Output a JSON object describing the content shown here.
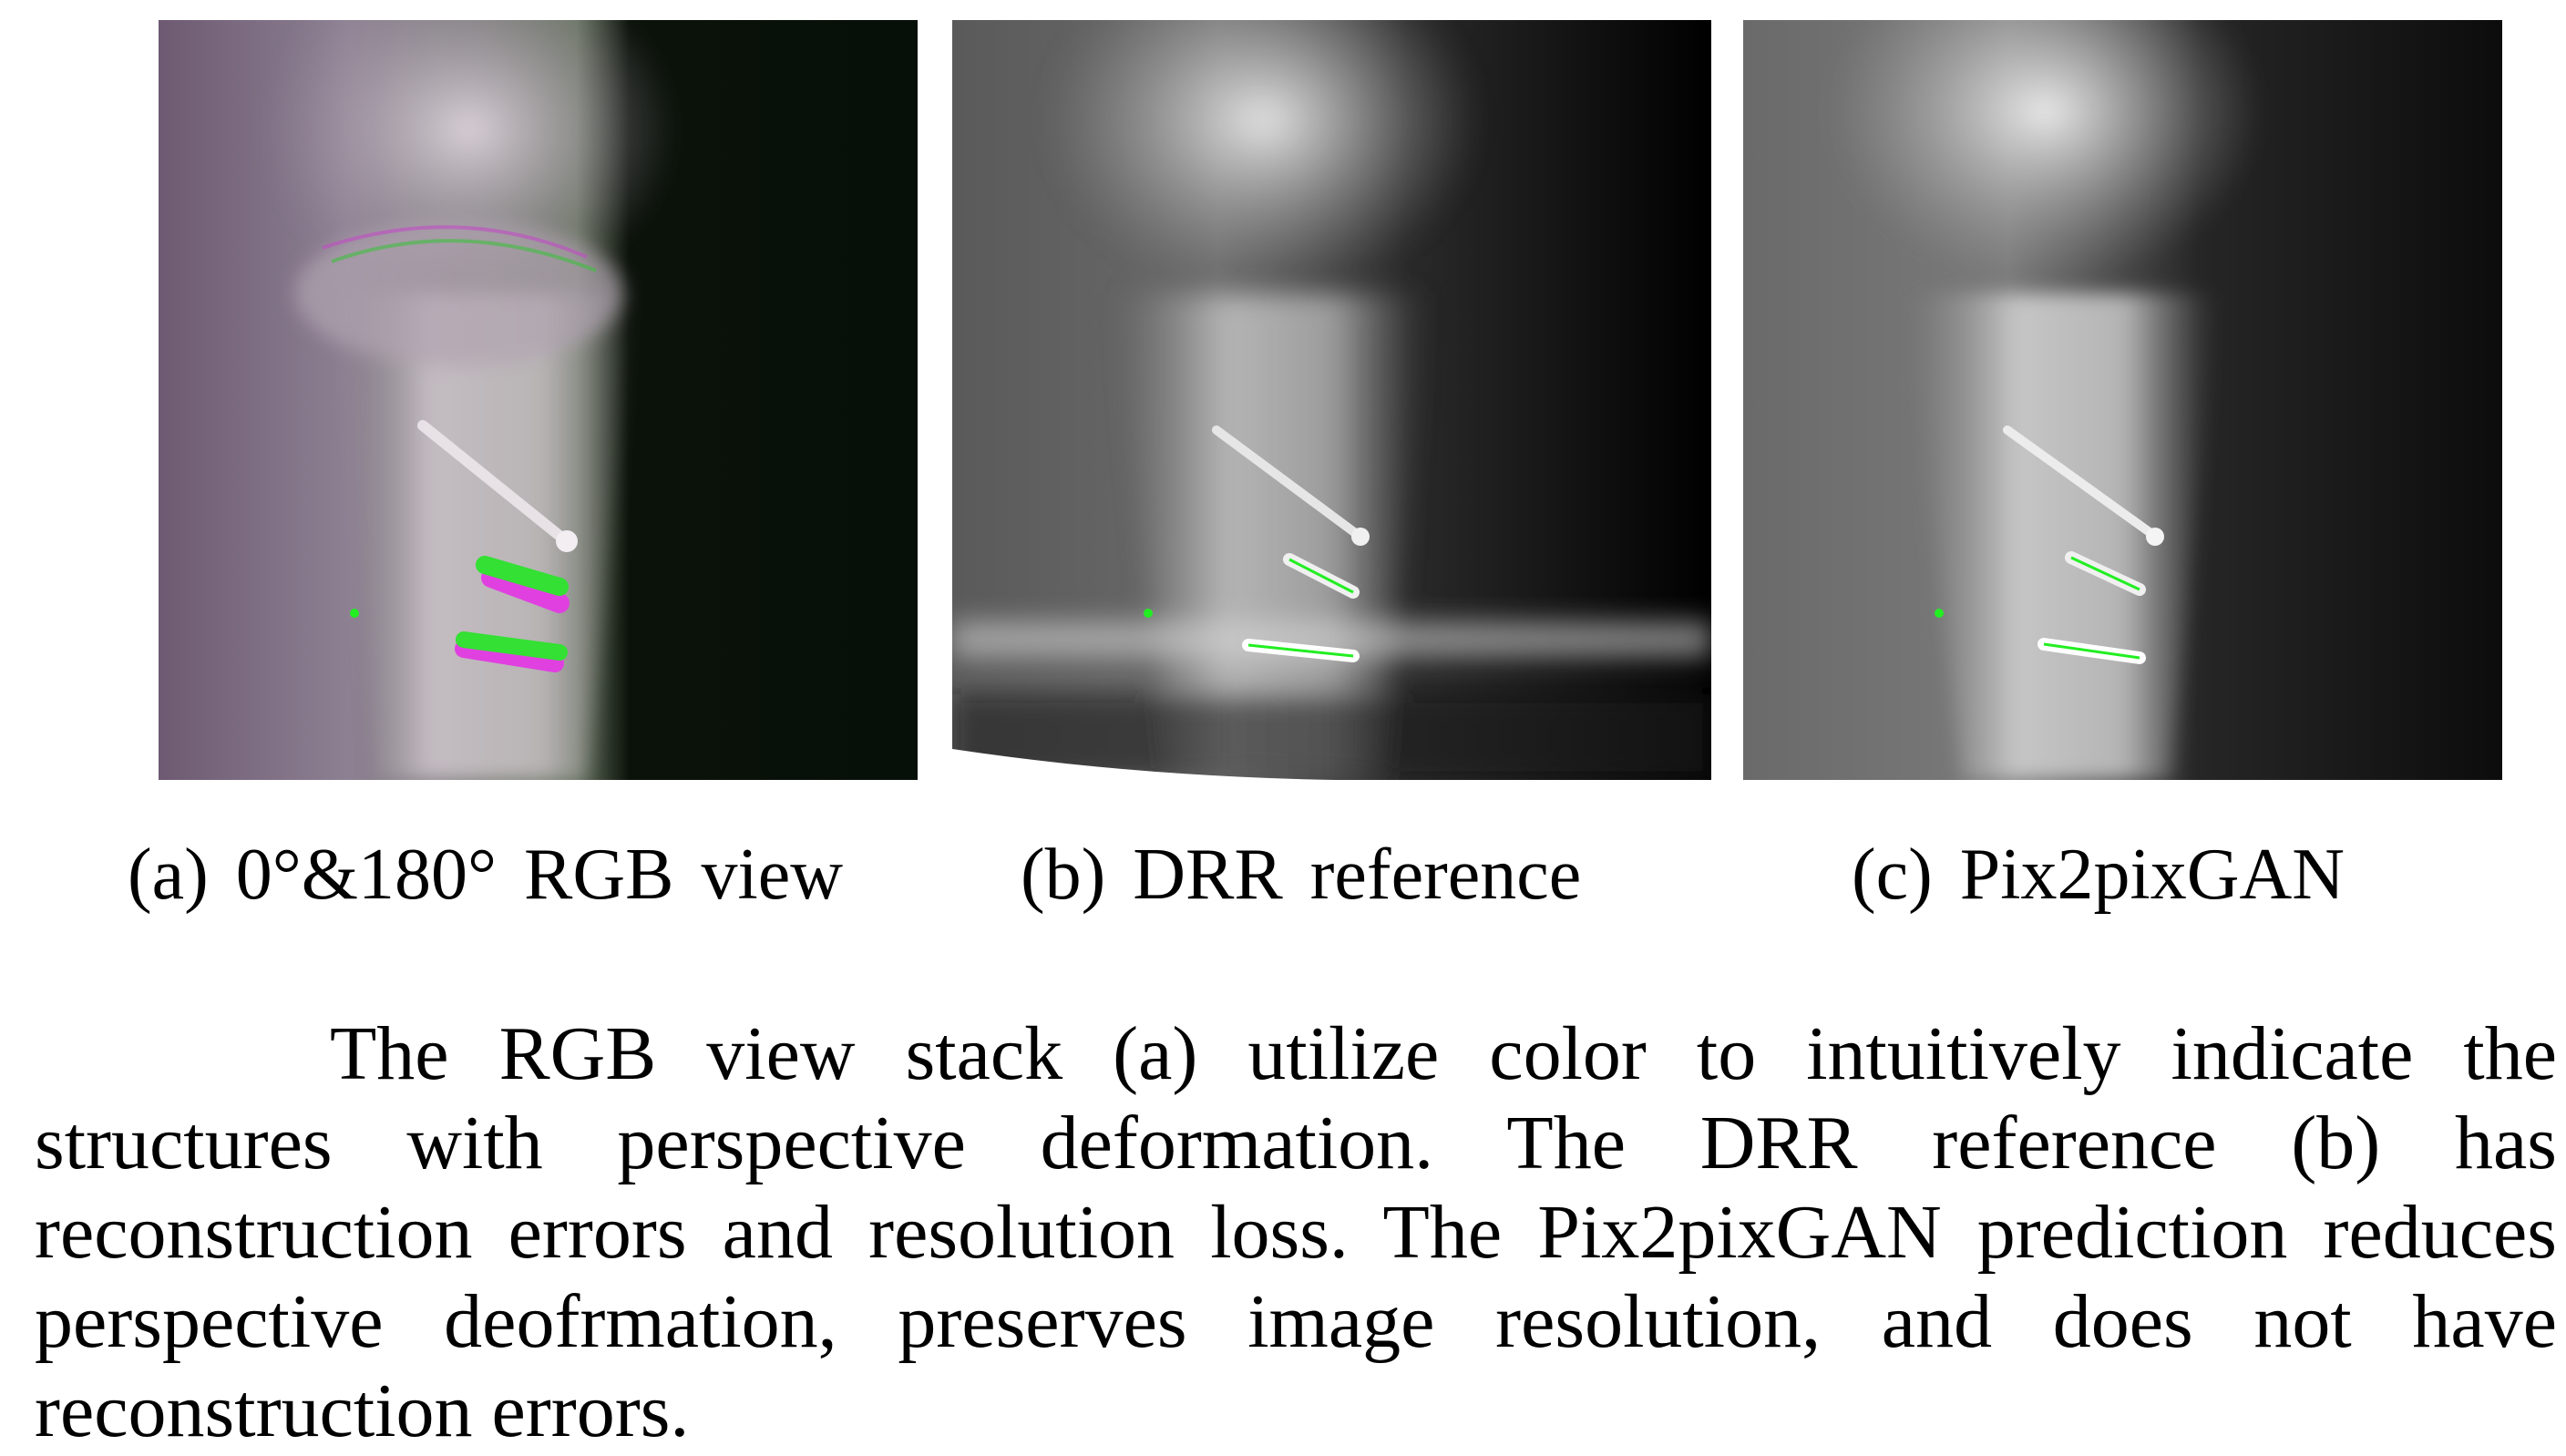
{
  "figure": {
    "panels": [
      {
        "id": "a",
        "label": "(a)",
        "title": "0°&180° RGB view"
      },
      {
        "id": "b",
        "label": "(b)",
        "title": "DRR reference"
      },
      {
        "id": "c",
        "label": "(c)",
        "title": "Pix2pixGAN"
      }
    ],
    "caption": "The RGB view stack (a) utilize color to intuitively indicate the structures with perspective deformation. The DRR reference (b) has reconstruction errors and resolution loss. The Pix2pixGAN prediction reduces perspective deofrmation, preserves image resolution, and does not have reconstruction errors."
  },
  "colors": {
    "magenta_overlay": "#e040e0",
    "green_overlay": "#33ff33",
    "marker_green": "#22ee22"
  }
}
